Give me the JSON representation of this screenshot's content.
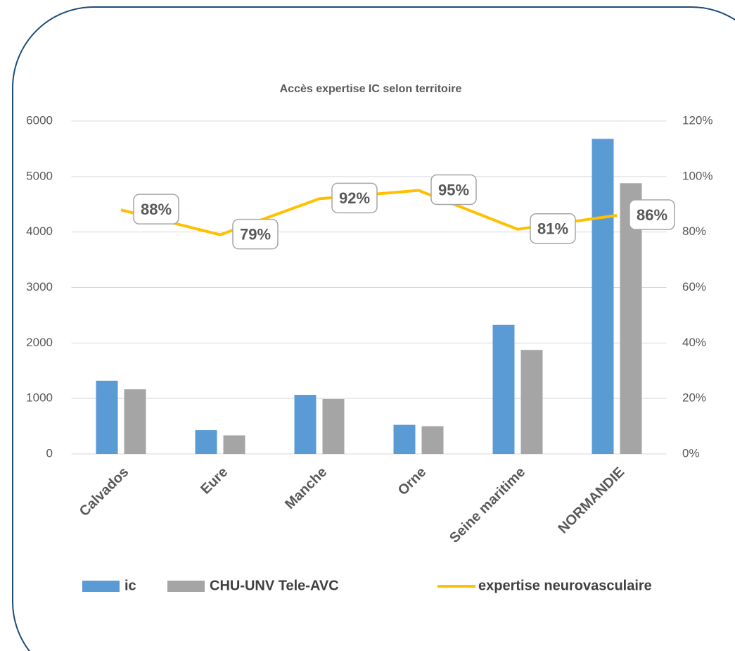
{
  "chart_data": {
    "type": "bar_line",
    "title": "Accès expertise IC selon territoire",
    "categories": [
      "Calvados",
      "Eure",
      "Manche",
      "Orne",
      "Seine maritime",
      "NORMANDIE"
    ],
    "series": [
      {
        "name": "ic",
        "type": "bar",
        "color": "#5b9bd5",
        "values": [
          1320,
          430,
          1065,
          525,
          2325,
          5680
        ]
      },
      {
        "name": "CHU-UNV Tele-AVC",
        "type": "bar",
        "color": "#a5a5a5",
        "values": [
          1165,
          335,
          990,
          500,
          1875,
          4880
        ]
      },
      {
        "name": "expertise neurovasculaire",
        "type": "line",
        "axis": "y2",
        "color": "#ffc000",
        "values": [
          88,
          79,
          92,
          95,
          81,
          86
        ],
        "value_labels": [
          "88%",
          "79%",
          "92%",
          "95%",
          "81%",
          "86%"
        ]
      }
    ],
    "ylim": [
      0,
      6000
    ],
    "yticks": [
      0,
      1000,
      2000,
      3000,
      4000,
      5000,
      6000
    ],
    "y2lim": [
      0,
      120
    ],
    "y2ticks": [
      {
        "value": 0,
        "label": "0%"
      },
      {
        "value": 20,
        "label": "20%"
      },
      {
        "value": 40,
        "label": "40%"
      },
      {
        "value": 60,
        "label": "60%"
      },
      {
        "value": 80,
        "label": "80%"
      },
      {
        "value": 100,
        "label": "100%"
      },
      {
        "value": 120,
        "label": "120%"
      }
    ],
    "grid": true,
    "legend": "bottom"
  }
}
